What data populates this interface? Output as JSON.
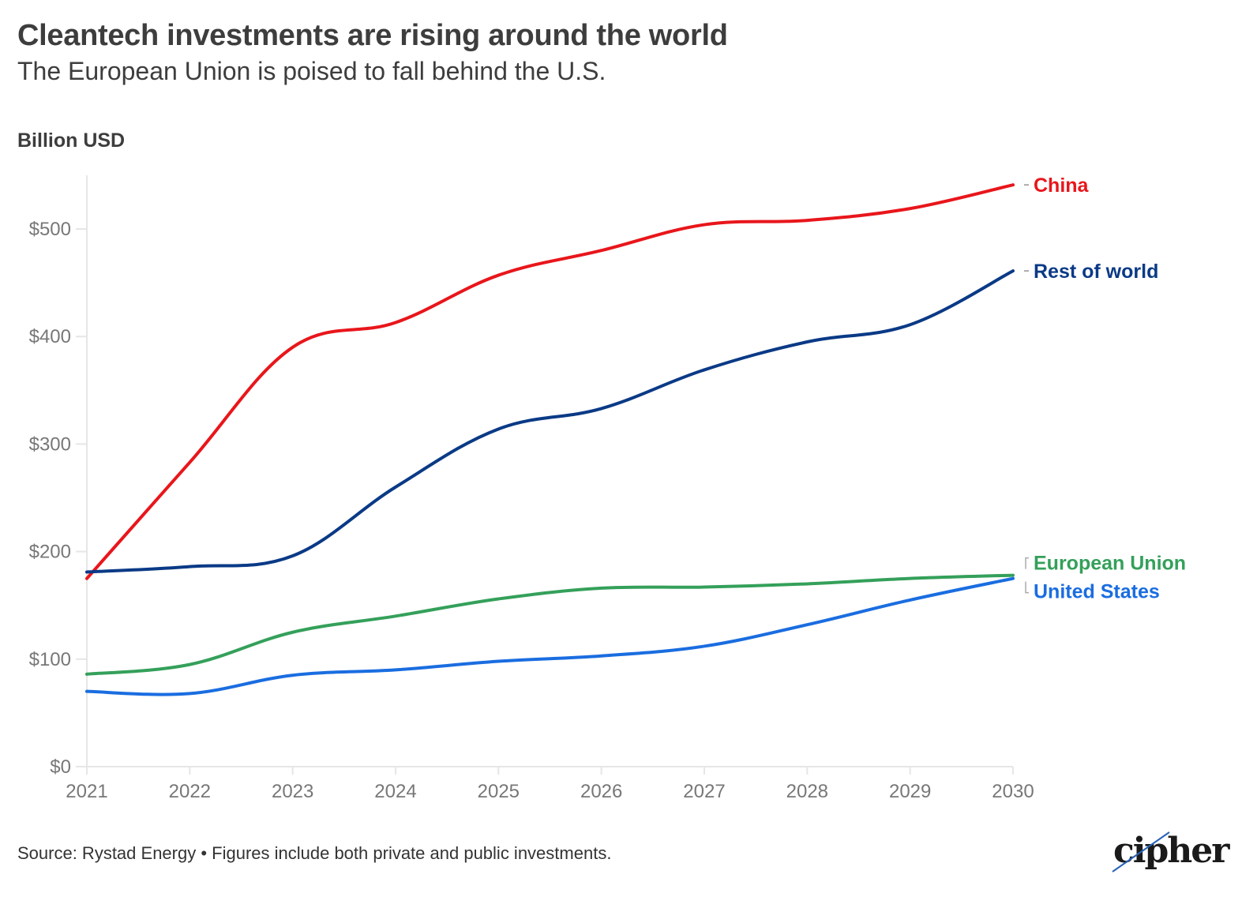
{
  "header": {
    "title": "Cleantech investments are rising around the world",
    "subtitle": "The European Union is poised to fall behind the U.S.",
    "unit_label": "Billion USD"
  },
  "footer": {
    "source": "Source: Rystad Energy • Figures include both private and public investments.",
    "logo_text": "cipher"
  },
  "chart_data": {
    "type": "line",
    "title": "Cleantech investments are rising around the world",
    "subtitle": "The European Union is poised to fall behind the U.S.",
    "xlabel": "",
    "ylabel": "Billion USD",
    "x": [
      2021,
      2022,
      2023,
      2024,
      2025,
      2026,
      2027,
      2028,
      2029,
      2030
    ],
    "x_tick_labels": [
      "2021",
      "2022",
      "2023",
      "2024",
      "2025",
      "2026",
      "2027",
      "2028",
      "2029",
      "2030"
    ],
    "ylim": [
      0,
      550
    ],
    "y_ticks": [
      0,
      100,
      200,
      300,
      400,
      500
    ],
    "y_tick_labels": [
      "$0",
      "$100",
      "$200",
      "$300",
      "$400",
      "$500"
    ],
    "grid": false,
    "legend": "direct labels at line ends (right)",
    "series": [
      {
        "name": "China",
        "color": "#e8161b",
        "values": [
          175,
          283,
          390,
          413,
          457,
          480,
          504,
          508,
          519,
          541
        ]
      },
      {
        "name": "Rest of world",
        "color": "#0a3a86",
        "values": [
          181,
          186,
          196,
          260,
          314,
          333,
          369,
          395,
          411,
          461
        ]
      },
      {
        "name": "European Union",
        "color": "#34a05a",
        "values": [
          86,
          95,
          125,
          140,
          156,
          166,
          167,
          170,
          175,
          178
        ]
      },
      {
        "name": "United States",
        "color": "#1a6de0",
        "values": [
          70,
          68,
          85,
          90,
          98,
          103,
          112,
          132,
          155,
          175
        ]
      }
    ]
  }
}
